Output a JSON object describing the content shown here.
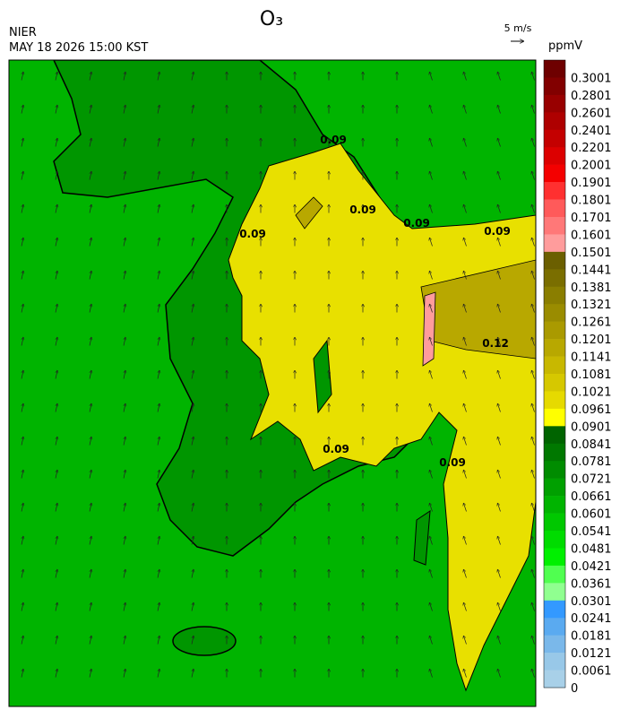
{
  "header": {
    "title": "O₃",
    "agency": "NIER",
    "datetime": "MAY 18 2026 15:00 KST",
    "vector_scale": "5 m/s",
    "unit": "ppmV"
  },
  "colorbar": {
    "labels": [
      0.3001,
      0.2801,
      0.2601,
      0.2401,
      0.2201,
      0.2001,
      0.1901,
      0.1801,
      0.1701,
      0.1601,
      0.1501,
      0.1441,
      0.1381,
      0.1321,
      0.1261,
      0.1201,
      0.1141,
      0.1081,
      0.1021,
      0.0961,
      0.0901,
      0.0841,
      0.0781,
      0.0721,
      0.0661,
      0.0601,
      0.0541,
      0.0481,
      0.0421,
      0.0361,
      0.0301,
      0.0241,
      0.0181,
      0.0121,
      0.0061,
      0
    ],
    "colors": [
      "#6e0000",
      "#820000",
      "#980000",
      "#ae0000",
      "#c40000",
      "#dc0000",
      "#f40000",
      "#ff3030",
      "#ff5a5a",
      "#ff7878",
      "#ff9c9c",
      "#6b5f00",
      "#7a6e00",
      "#8a7e00",
      "#9a8c00",
      "#aa9a00",
      "#b8a800",
      "#c8b800",
      "#d6c800",
      "#e6da00",
      "#ffff00",
      "#006400",
      "#007800",
      "#008c00",
      "#00a000",
      "#00b400",
      "#00c800",
      "#00dc00",
      "#00f000",
      "#50ff50",
      "#90ff90",
      "#3399ff",
      "#5aaaf0",
      "#7ab8ea",
      "#98c8e8",
      "#a8d0e8"
    ]
  },
  "contour_labels": [
    "0.09",
    "0.12",
    "0.09",
    "0.09",
    "0.09",
    "0.09",
    "0.09",
    "0.09"
  ]
}
